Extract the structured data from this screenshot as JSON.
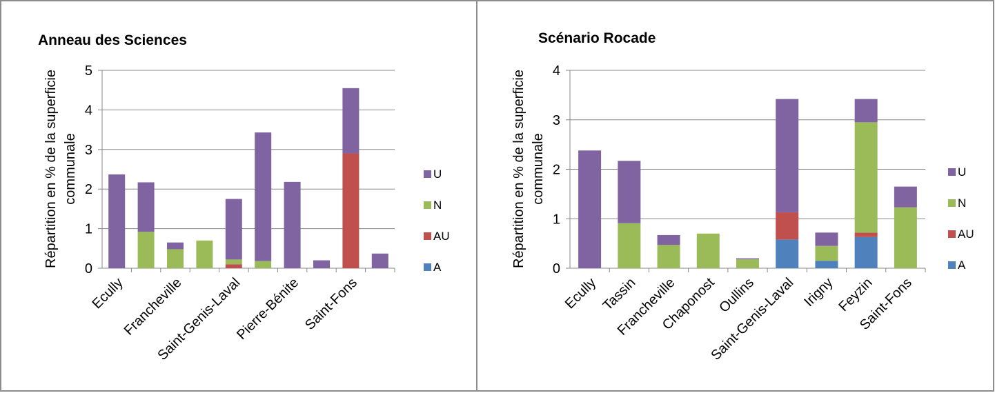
{
  "chart_data": [
    {
      "type": "bar",
      "stacked": true,
      "title": "Anneau des Sciences",
      "ylabel": "Répartition en % de la superficie communale",
      "ylim": [
        0,
        5
      ],
      "yticks": [
        0,
        1,
        2,
        3,
        4,
        5
      ],
      "grid": true,
      "legend_position": "right",
      "categories": [
        "Ecully",
        "",
        "Francheville",
        "",
        "Saint-Genis-Laval",
        "",
        "Pierre-Bénite",
        "",
        "Saint-Fons",
        ""
      ],
      "series": [
        {
          "name": "A",
          "color": "#4f81bd",
          "values": [
            0,
            0,
            0,
            0,
            0,
            0,
            0,
            0,
            0,
            0
          ]
        },
        {
          "name": "AU",
          "color": "#c0504d",
          "values": [
            0,
            0,
            0,
            0,
            0.1,
            0,
            0,
            0,
            2.9,
            0
          ]
        },
        {
          "name": "N",
          "color": "#9bbb59",
          "values": [
            0,
            0.92,
            0.48,
            0.7,
            0.12,
            0.18,
            0,
            0,
            0,
            0
          ]
        },
        {
          "name": "U",
          "color": "#8064a2",
          "values": [
            2.37,
            1.25,
            0.17,
            0,
            1.53,
            3.25,
            2.18,
            0.2,
            1.65,
            0.37
          ]
        }
      ]
    },
    {
      "type": "bar",
      "stacked": true,
      "title": "Scénario Rocade",
      "ylabel": "Répartition en % de la superficie communale",
      "ylim": [
        0,
        4
      ],
      "yticks": [
        0,
        1,
        2,
        3,
        4
      ],
      "grid": true,
      "legend_position": "right",
      "categories": [
        "Ecully",
        "Tassin",
        "Francheville",
        "Chaponost",
        "Oullins",
        "Saint-Genis-Laval",
        "Irigny",
        "Feyzin",
        "Saint-Fons"
      ],
      "series": [
        {
          "name": "A",
          "color": "#4f81bd",
          "values": [
            0,
            0,
            0,
            0,
            0,
            0.58,
            0.15,
            0.63,
            0
          ]
        },
        {
          "name": "AU",
          "color": "#c0504d",
          "values": [
            0,
            0,
            0,
            0,
            0,
            0.55,
            0,
            0.09,
            0
          ]
        },
        {
          "name": "N",
          "color": "#9bbb59",
          "values": [
            0,
            0.91,
            0.47,
            0.7,
            0.18,
            0,
            0.3,
            2.23,
            1.23
          ]
        },
        {
          "name": "U",
          "color": "#8064a2",
          "values": [
            2.38,
            1.26,
            0.2,
            0,
            0.02,
            2.29,
            0.27,
            0.47,
            0.42
          ]
        }
      ]
    }
  ]
}
